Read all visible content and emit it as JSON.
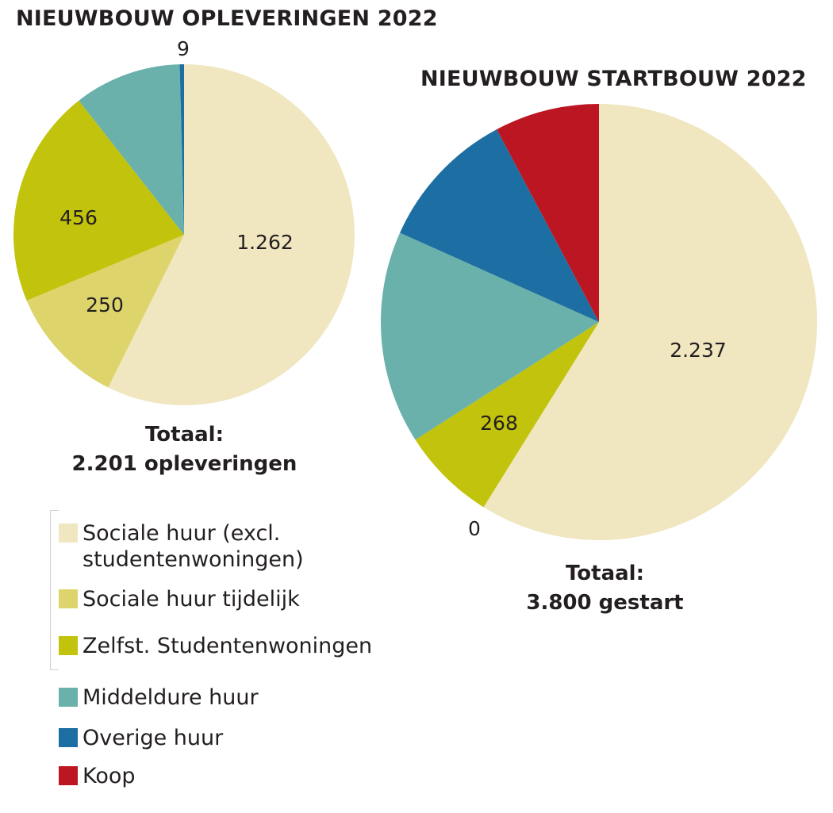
{
  "chart_data": [
    {
      "type": "pie",
      "title": "NIEUWBOUW OPLEVERINGEN 2022",
      "slices": [
        {
          "label": "Sociale huur (excl. studentenwoningen)",
          "value": 1262,
          "value_label": "1.262",
          "color": "#f0e6c0"
        },
        {
          "label": "Sociale huur tijdelijk",
          "value": 250,
          "value_label": "250",
          "color": "#ddd46c"
        },
        {
          "label": "Zelfst. Studentenwoningen",
          "value": 456,
          "value_label": "456",
          "color": "#c1c30c"
        },
        {
          "label": "Middeldure huur",
          "value": 224,
          "value_label": "",
          "color": "#6ab1ab"
        },
        {
          "label": "Overige huur",
          "value": 9,
          "value_label": "9",
          "color": "#1d6fa3"
        }
      ],
      "total_label": [
        "Totaal:",
        "2.201 opleveringen"
      ]
    },
    {
      "type": "pie",
      "title": "NIEUWBOUW STARTBOUW 2022",
      "slices": [
        {
          "label": "Sociale huur (excl. studentenwoningen)",
          "value": 2237,
          "value_label": "2.237",
          "color": "#f0e6c0"
        },
        {
          "label": "Sociale huur tijdelijk",
          "value": 0,
          "value_label": "0",
          "color": "#ddd46c"
        },
        {
          "label": "Zelfst. Studentenwoningen",
          "value": 268,
          "value_label": "268",
          "color": "#c1c30c"
        },
        {
          "label": "Middeldure huur",
          "value": 600,
          "value_label": "",
          "color": "#6ab1ab"
        },
        {
          "label": "Overige huur",
          "value": 400,
          "value_label": "",
          "color": "#1d6fa3"
        },
        {
          "label": "Koop",
          "value": 295,
          "value_label": "",
          "color": "#bc1622"
        }
      ],
      "total_label": [
        "Totaal:",
        "3.800 gestart"
      ]
    }
  ],
  "legend": [
    {
      "label": "Sociale huur (excl. studentenwoningen)",
      "lines": [
        "Sociale huur (excl.",
        "studentenwoningen)"
      ],
      "color": "#f0e6c0"
    },
    {
      "label": "Sociale huur tijdelijk",
      "lines": [
        "Sociale huur tijdelijk"
      ],
      "color": "#ddd46c"
    },
    {
      "label": "Zelfst. Studentenwoningen",
      "lines": [
        "Zelfst. Studentenwoningen"
      ],
      "color": "#c1c30c"
    },
    {
      "label": "Middeldure huur",
      "lines": [
        "Middeldure huur"
      ],
      "color": "#6ab1ab"
    },
    {
      "label": "Overige huur",
      "lines": [
        "Overige huur"
      ],
      "color": "#1d6fa3"
    },
    {
      "label": "Koop",
      "lines": [
        "Koop"
      ],
      "color": "#bc1622"
    }
  ]
}
